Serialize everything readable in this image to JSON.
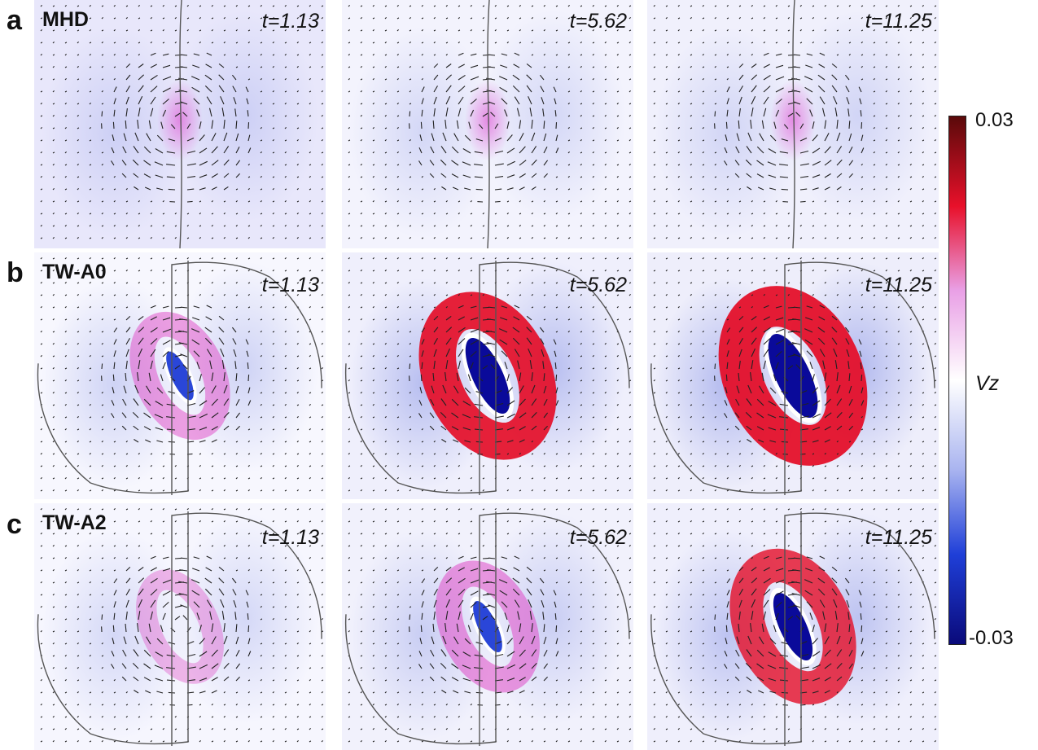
{
  "chart_data": {
    "type": "heatmap",
    "description_variable": "Vz",
    "rows": [
      {
        "letter": "a",
        "model": "MHD"
      },
      {
        "letter": "b",
        "model": "TW-A0"
      },
      {
        "letter": "c",
        "model": "TW-A2"
      }
    ],
    "times": [
      "t=1.13",
      "t=5.62",
      "t=11.25"
    ],
    "colorbar": {
      "label": "Vz",
      "max_label": "0.03",
      "min_label": "-0.03",
      "range": [
        -0.03,
        0.03
      ],
      "colors": [
        "#0a0a7a",
        "#1f3fd8",
        "#a9b4f0",
        "#ffffff",
        "#e9a0e6",
        "#e8102a",
        "#5a0a0a"
      ]
    },
    "panels": [
      {
        "row": 0,
        "col": 0,
        "strength": 0.12,
        "boundary": "none",
        "background": "#e8e7fb"
      },
      {
        "row": 0,
        "col": 1,
        "strength": 0.15,
        "boundary": "none",
        "background": "#f3f3fd"
      },
      {
        "row": 0,
        "col": 2,
        "strength": 0.15,
        "boundary": "none",
        "background": "#f0f0fc"
      },
      {
        "row": 1,
        "col": 0,
        "strength": 0.35,
        "boundary": "small",
        "background": "#f7f7fe"
      },
      {
        "row": 1,
        "col": 1,
        "strength": 0.85,
        "boundary": "medium",
        "background": "#efeffc"
      },
      {
        "row": 1,
        "col": 2,
        "strength": 1.0,
        "boundary": "large",
        "background": "#eeeefb"
      },
      {
        "row": 2,
        "col": 0,
        "strength": 0.18,
        "boundary": "small",
        "background": "#f6f6fe"
      },
      {
        "row": 2,
        "col": 1,
        "strength": 0.4,
        "boundary": "medium",
        "background": "#f1f1fc"
      },
      {
        "row": 2,
        "col": 2,
        "strength": 0.7,
        "boundary": "large",
        "background": "#efeffc"
      }
    ]
  }
}
